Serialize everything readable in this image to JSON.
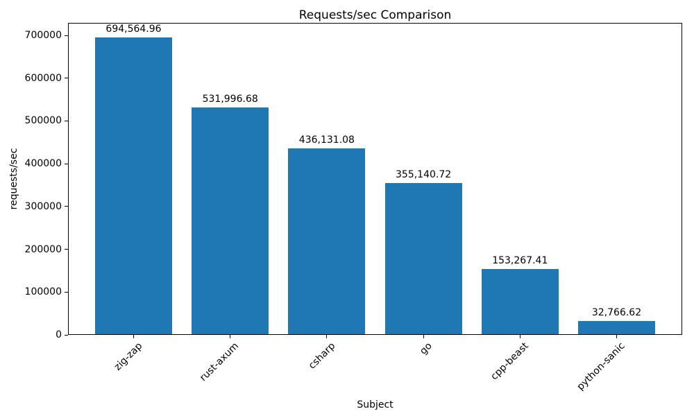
{
  "chart_data": {
    "type": "bar",
    "title": "Requests/sec Comparison",
    "xlabel": "Subject",
    "ylabel": "requests/sec",
    "categories": [
      "zig-zap",
      "rust-axum",
      "csharp",
      "go",
      "cpp-beast",
      "python-sanic"
    ],
    "values": [
      694564.96,
      531996.68,
      436131.08,
      355140.72,
      153267.41,
      32766.62
    ],
    "value_labels": [
      "694,564.96",
      "531,996.68",
      "436,131.08",
      "355,140.72",
      "153,267.41",
      "32,766.62"
    ],
    "yticks": [
      0,
      100000,
      200000,
      300000,
      400000,
      500000,
      600000,
      700000
    ],
    "ytick_labels": [
      "0",
      "100000",
      "200000",
      "300000",
      "400000",
      "500000",
      "600000",
      "700000"
    ],
    "ylim": [
      0,
      729293
    ],
    "bar_color": "#1f77b4",
    "grid": false,
    "legend": "none",
    "x_tick_rotation": 45
  }
}
